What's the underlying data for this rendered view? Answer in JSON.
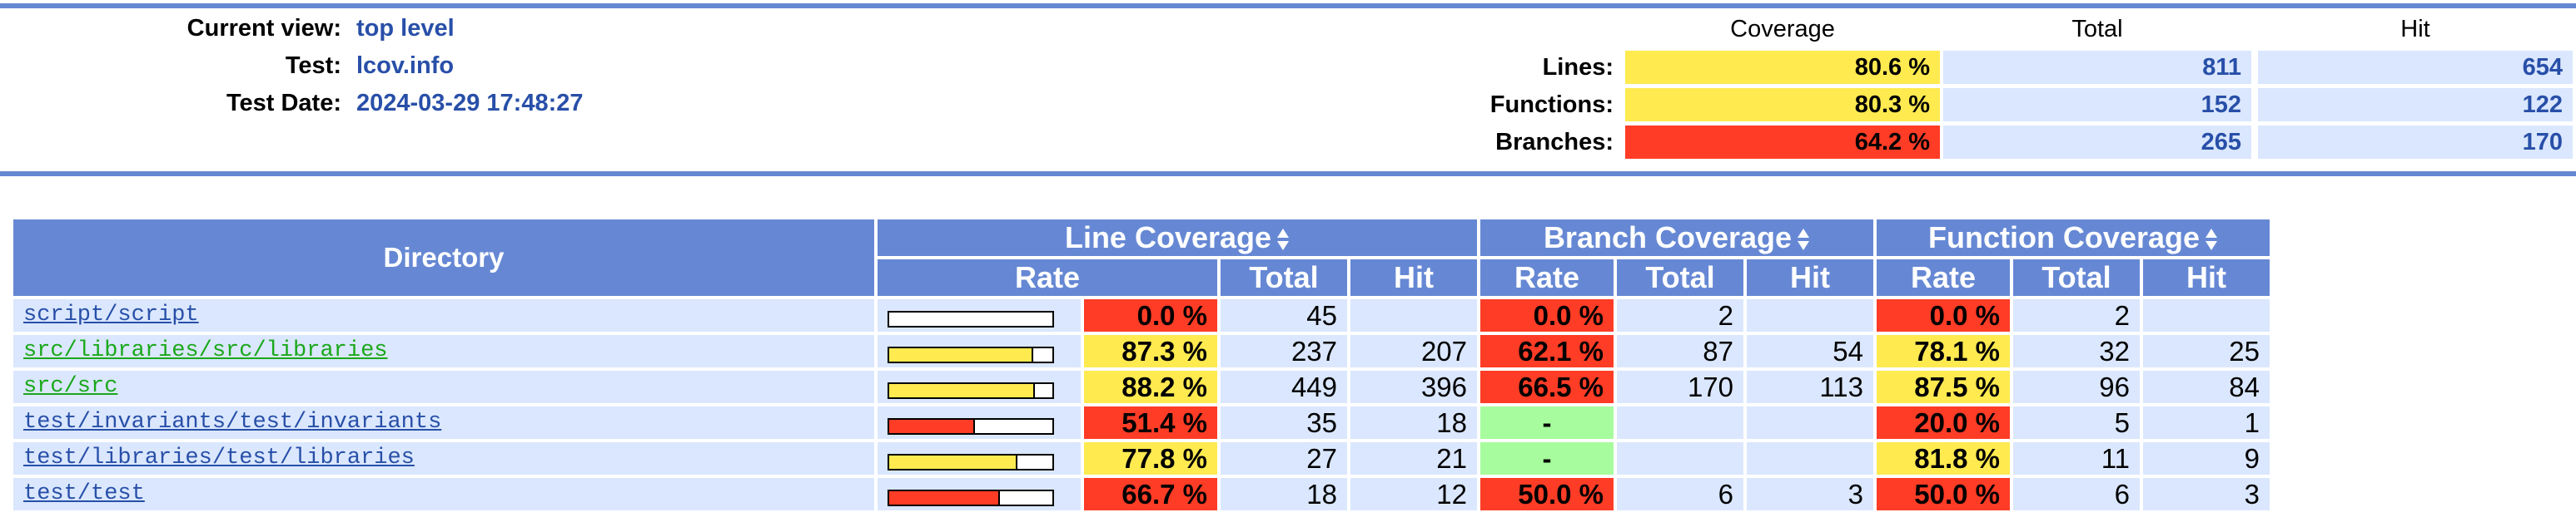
{
  "header": {
    "current_view_label": "Current view:",
    "current_view_value": "top level",
    "test_label": "Test:",
    "test_value": "lcov.info",
    "test_date_label": "Test Date:",
    "test_date_value": "2024-03-29 17:48:27"
  },
  "summary": {
    "headers": [
      "Coverage",
      "Total",
      "Hit"
    ],
    "rows": [
      {
        "label": "Lines:",
        "coverage": "80.6 %",
        "total": "811",
        "hit": "654",
        "level": "medium"
      },
      {
        "label": "Functions:",
        "coverage": "80.3 %",
        "total": "152",
        "hit": "122",
        "level": "medium"
      },
      {
        "label": "Branches:",
        "coverage": "64.2 %",
        "total": "265",
        "hit": "170",
        "level": "low"
      }
    ]
  },
  "table": {
    "directory_header": "Directory",
    "line_coverage_header": "Line Coverage",
    "branch_coverage_header": "Branch Coverage",
    "function_coverage_header": "Function Coverage",
    "rate_header": "Rate",
    "total_header": "Total",
    "hit_header": "Hit",
    "rows": [
      {
        "dir": "script/script",
        "link_color": "blue",
        "line_fraction": 0.0,
        "line_rate": "0.0 %",
        "line_total": "45",
        "line_hit": "",
        "branch_rate": "0.0 %",
        "branch_total": "2",
        "branch_hit": "",
        "func_rate": "0.0 %",
        "func_total": "2",
        "func_hit": ""
      },
      {
        "dir": "src/libraries/src/libraries",
        "link_color": "green",
        "line_fraction": 0.873,
        "line_rate": "87.3 %",
        "line_total": "237",
        "line_hit": "207",
        "branch_rate": "62.1 %",
        "branch_total": "87",
        "branch_hit": "54",
        "func_rate": "78.1 %",
        "func_total": "32",
        "func_hit": "25"
      },
      {
        "dir": "src/src",
        "link_color": "green",
        "line_fraction": 0.882,
        "line_rate": "88.2 %",
        "line_total": "449",
        "line_hit": "396",
        "branch_rate": "66.5 %",
        "branch_total": "170",
        "branch_hit": "113",
        "func_rate": "87.5 %",
        "func_total": "96",
        "func_hit": "84"
      },
      {
        "dir": "test/invariants/test/invariants",
        "link_color": "blue",
        "line_fraction": 0.514,
        "line_rate": "51.4 %",
        "line_total": "35",
        "line_hit": "18",
        "branch_rate": "-",
        "branch_total": "",
        "branch_hit": "",
        "func_rate": "20.0 %",
        "func_total": "5",
        "func_hit": "1"
      },
      {
        "dir": "test/libraries/test/libraries",
        "link_color": "blue",
        "line_fraction": 0.778,
        "line_rate": "77.8 %",
        "line_total": "27",
        "line_hit": "21",
        "branch_rate": "-",
        "branch_total": "",
        "branch_hit": "",
        "func_rate": "81.8 %",
        "func_total": "11",
        "func_hit": "9"
      },
      {
        "dir": "test/test",
        "link_color": "blue",
        "line_fraction": 0.667,
        "line_rate": "66.7 %",
        "line_total": "18",
        "line_hit": "12",
        "branch_rate": "50.0 %",
        "branch_total": "6",
        "branch_hit": "3",
        "func_rate": "50.0 %",
        "func_total": "6",
        "func_hit": "3"
      }
    ]
  },
  "colors": {
    "header_blue": "#6688d4",
    "row_blue": "#dae7fe",
    "value_blue": "#284fa8",
    "low_red": "#ff3c26",
    "medium_yellow": "#ffea50",
    "none_green": "#a7fc9d"
  }
}
